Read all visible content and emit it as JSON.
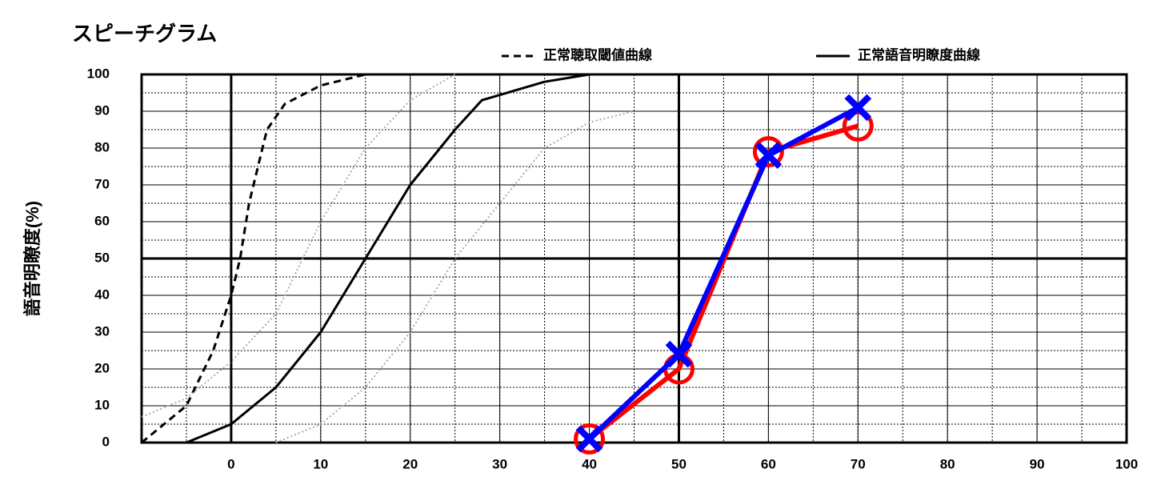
{
  "chart_data": {
    "type": "line",
    "title": "スピーチグラム",
    "y_label": "語音明瞭度(%)",
    "xlim": [
      -10,
      100
    ],
    "xticks": [
      0,
      10,
      20,
      30,
      40,
      50,
      60,
      70,
      80,
      90,
      100
    ],
    "ylim": [
      0,
      100
    ],
    "yticks": [
      0,
      10,
      20,
      30,
      40,
      50,
      60,
      70,
      80,
      90,
      100
    ],
    "grid": true,
    "minor_step": 5,
    "bold_x": [
      0,
      50
    ],
    "bold_y": [
      50
    ],
    "legend": "top-right",
    "series": [
      {
        "name": "正常聴取閾値曲線",
        "color": "#000000",
        "style": "dashed",
        "x": [
          -10,
          -5,
          -2,
          0,
          1,
          2,
          3,
          4,
          6,
          10,
          15
        ],
        "values": [
          0,
          10,
          25,
          40,
          50,
          65,
          75,
          85,
          92,
          97,
          100
        ]
      },
      {
        "name": "正常語音明瞭度曲線",
        "color": "#000000",
        "style": "solid",
        "x": [
          -5,
          0,
          5,
          10,
          15,
          20,
          25,
          28,
          35,
          40
        ],
        "values": [
          0,
          5,
          15,
          30,
          50,
          70,
          85,
          93,
          98,
          100
        ]
      },
      {
        "color": "#aaaaaa",
        "style": "dotted",
        "x": [
          -10,
          -5,
          0,
          5,
          10,
          15,
          20,
          25
        ],
        "values": [
          7,
          12,
          22,
          35,
          60,
          80,
          93,
          100
        ]
      },
      {
        "color": "#aaaaaa",
        "style": "dotted",
        "x": [
          5,
          10,
          15,
          20,
          25,
          30,
          35,
          40,
          45
        ],
        "values": [
          0,
          5,
          15,
          30,
          50,
          65,
          80,
          87,
          90
        ]
      },
      {
        "color": "#ff0000",
        "style": "solid",
        "marker": "circle",
        "x": [
          40,
          50,
          60,
          70
        ],
        "values": [
          1,
          20,
          79,
          86
        ]
      },
      {
        "color": "#0000ff",
        "style": "solid",
        "marker": "cross",
        "x": [
          40,
          50,
          60,
          70
        ],
        "values": [
          1,
          24,
          78,
          91
        ]
      }
    ]
  }
}
